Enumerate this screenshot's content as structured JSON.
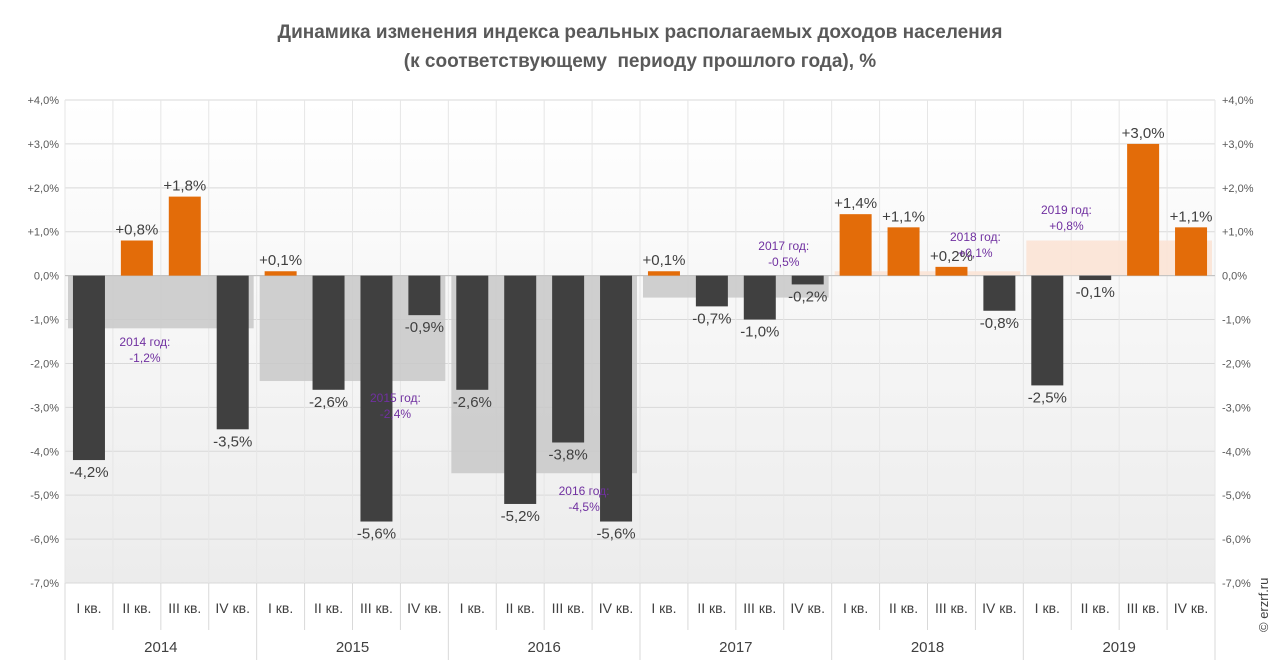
{
  "chart_data": {
    "type": "bar",
    "title": "Динамика изменения индекса реальных располагаемых доходов населения",
    "subtitle": "(к соответствующему  периоду прошлого года), %",
    "ylim": [
      -7,
      4
    ],
    "yticks": [
      "+4,0%",
      "+3,0%",
      "+2,0%",
      "+1,0%",
      "0,0%",
      "-1,0%",
      "-2,0%",
      "-3,0%",
      "-4,0%",
      "-5,0%",
      "-6,0%",
      "-7,0%"
    ],
    "categories": [
      "I кв.",
      "II кв.",
      "III кв.",
      "IV кв.",
      "I кв.",
      "II кв.",
      "III кв.",
      "IV кв.",
      "I кв.",
      "II кв.",
      "III кв.",
      "IV кв.",
      "I кв.",
      "II кв.",
      "III кв.",
      "IV кв.",
      "I кв.",
      "II кв.",
      "III кв.",
      "IV кв.",
      "I кв.",
      "II кв.",
      "III кв.",
      "IV кв."
    ],
    "years": [
      "2014",
      "2015",
      "2016",
      "2017",
      "2018",
      "2019"
    ],
    "values": [
      -4.2,
      0.8,
      1.8,
      -3.5,
      0.1,
      -2.6,
      -5.6,
      -0.9,
      -2.6,
      -5.2,
      -3.8,
      -5.6,
      0.1,
      -0.7,
      -1.0,
      -0.2,
      1.4,
      1.1,
      0.2,
      -0.8,
      -2.5,
      -0.1,
      3.0,
      1.1
    ],
    "value_labels": [
      "-4,2%",
      "+0,8%",
      "+1,8%",
      "-3,5%",
      "+0,1%",
      "-2,6%",
      "-5,6%",
      "-0,9%",
      "-2,6%",
      "-5,2%",
      "-3,8%",
      "-5,6%",
      "+0,1%",
      "-0,7%",
      "-1,0%",
      "-0,2%",
      "+1,4%",
      "+1,1%",
      "+0,2%",
      "-0,8%",
      "-2,5%",
      "-0,1%",
      "+3,0%",
      "+1,1%"
    ],
    "annual": [
      {
        "year": "2014",
        "label": "2014 год:",
        "value_label": "-1,2%",
        "value": -1.2
      },
      {
        "year": "2015",
        "label": "2015 год:",
        "value_label": "-2,4%",
        "value": -2.4
      },
      {
        "year": "2016",
        "label": "2016 год:",
        "value_label": "-4,5%",
        "value": -4.5
      },
      {
        "year": "2017",
        "label": "2017 год:",
        "value_label": "-0,5%",
        "value": -0.5
      },
      {
        "year": "2018",
        "label": "2018 год:",
        "value_label": "+0,1%",
        "value": 0.1
      },
      {
        "year": "2019",
        "label": "2019 год:",
        "value_label": "+0,8%",
        "value": 0.8
      }
    ],
    "colors": {
      "positive": "#e36c09",
      "negative": "#404040",
      "annual_negative": "#c8c8c8",
      "annual_positive": "#fbe3d3",
      "annotation": "#7030a0"
    },
    "grid": true
  },
  "copyright": "© erzrf.ru"
}
